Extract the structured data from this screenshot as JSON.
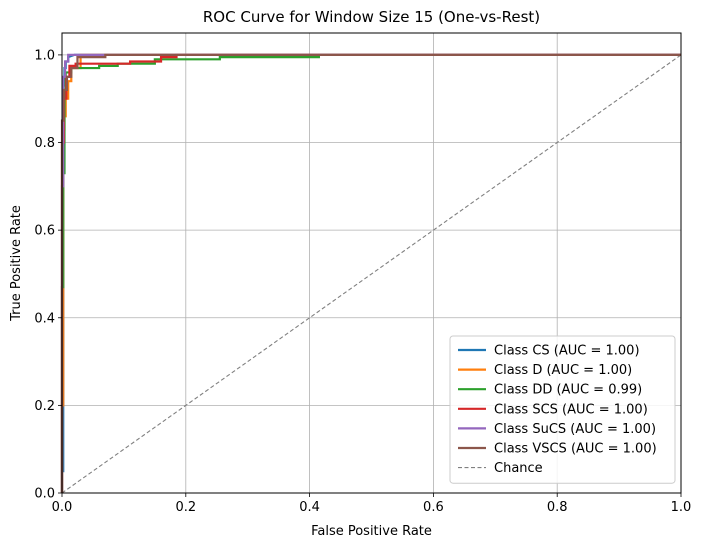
{
  "chart_data": {
    "type": "line",
    "title": "ROC Curve for Window Size 15 (One-vs-Rest)",
    "xlabel": "False Positive Rate",
    "ylabel": "True Positive Rate",
    "xlim": [
      0.0,
      1.0
    ],
    "ylim": [
      0.0,
      1.05
    ],
    "xticks": [
      "0.0",
      "0.2",
      "0.4",
      "0.6",
      "0.8",
      "1.0"
    ],
    "yticks": [
      "0.0",
      "0.2",
      "0.4",
      "0.6",
      "0.8",
      "1.0"
    ],
    "grid": true,
    "legend_position": "lower-right",
    "series": [
      {
        "name": "Class CS (AUC = 1.00)",
        "color": "#1f77b4",
        "x": [
          0.0,
          0.0,
          0.002,
          0.002,
          0.004,
          0.004,
          0.006,
          0.006,
          0.01,
          0.01,
          0.02,
          1.0
        ],
        "y": [
          0.0,
          0.05,
          0.05,
          0.93,
          0.93,
          0.97,
          0.97,
          0.985,
          0.985,
          0.995,
          1.0,
          1.0
        ]
      },
      {
        "name": "Class D (AUC = 1.00)",
        "color": "#ff7f0e",
        "x": [
          0.0,
          0.0,
          0.002,
          0.002,
          0.004,
          0.004,
          0.006,
          0.006,
          0.01,
          0.01,
          0.015,
          0.015,
          0.03,
          0.03,
          1.0
        ],
        "y": [
          0.0,
          0.2,
          0.2,
          0.83,
          0.83,
          0.86,
          0.86,
          0.9,
          0.9,
          0.94,
          0.94,
          0.97,
          0.97,
          1.0,
          1.0
        ]
      },
      {
        "name": "Class DD (AUC = 0.99)",
        "color": "#2ca02c",
        "x": [
          0.0,
          0.0,
          0.002,
          0.002,
          0.004,
          0.004,
          0.006,
          0.006,
          0.015,
          0.015,
          0.06,
          0.06,
          0.09,
          0.09,
          0.15,
          0.15,
          0.255,
          0.255,
          0.415,
          0.415,
          1.0
        ],
        "y": [
          0.0,
          0.47,
          0.47,
          0.73,
          0.73,
          0.92,
          0.92,
          0.96,
          0.96,
          0.97,
          0.97,
          0.975,
          0.975,
          0.98,
          0.98,
          0.99,
          0.99,
          0.995,
          0.995,
          1.0,
          1.0
        ]
      },
      {
        "name": "Class SCS (AUC = 1.00)",
        "color": "#d62728",
        "x": [
          0.0,
          0.0,
          0.003,
          0.003,
          0.007,
          0.007,
          0.012,
          0.012,
          0.022,
          0.022,
          0.11,
          0.11,
          0.16,
          0.16,
          0.185,
          0.185,
          1.0
        ],
        "y": [
          0.0,
          0.8,
          0.8,
          0.9,
          0.9,
          0.95,
          0.95,
          0.975,
          0.975,
          0.98,
          0.98,
          0.985,
          0.985,
          0.995,
          0.995,
          1.0,
          1.0
        ]
      },
      {
        "name": "Class SuCS (AUC = 1.00)",
        "color": "#9467bd",
        "x": [
          0.0,
          0.0,
          0.002,
          0.002,
          0.005,
          0.005,
          0.01,
          0.01,
          0.04,
          1.0
        ],
        "y": [
          0.0,
          0.7,
          0.7,
          0.95,
          0.95,
          0.985,
          0.985,
          1.0,
          1.0,
          1.0
        ]
      },
      {
        "name": "Class VSCS (AUC = 1.00)",
        "color": "#8c564b",
        "x": [
          0.0,
          0.0,
          0.003,
          0.003,
          0.008,
          0.008,
          0.015,
          0.015,
          0.025,
          0.025,
          0.07,
          0.07,
          1.0
        ],
        "y": [
          0.0,
          0.85,
          0.85,
          0.92,
          0.92,
          0.95,
          0.95,
          0.97,
          0.97,
          0.995,
          0.995,
          1.0,
          1.0
        ]
      }
    ],
    "reference_line": {
      "name": "Chance",
      "color": "#808080",
      "x": [
        0.0,
        1.0
      ],
      "y": [
        0.0,
        1.0
      ]
    }
  }
}
